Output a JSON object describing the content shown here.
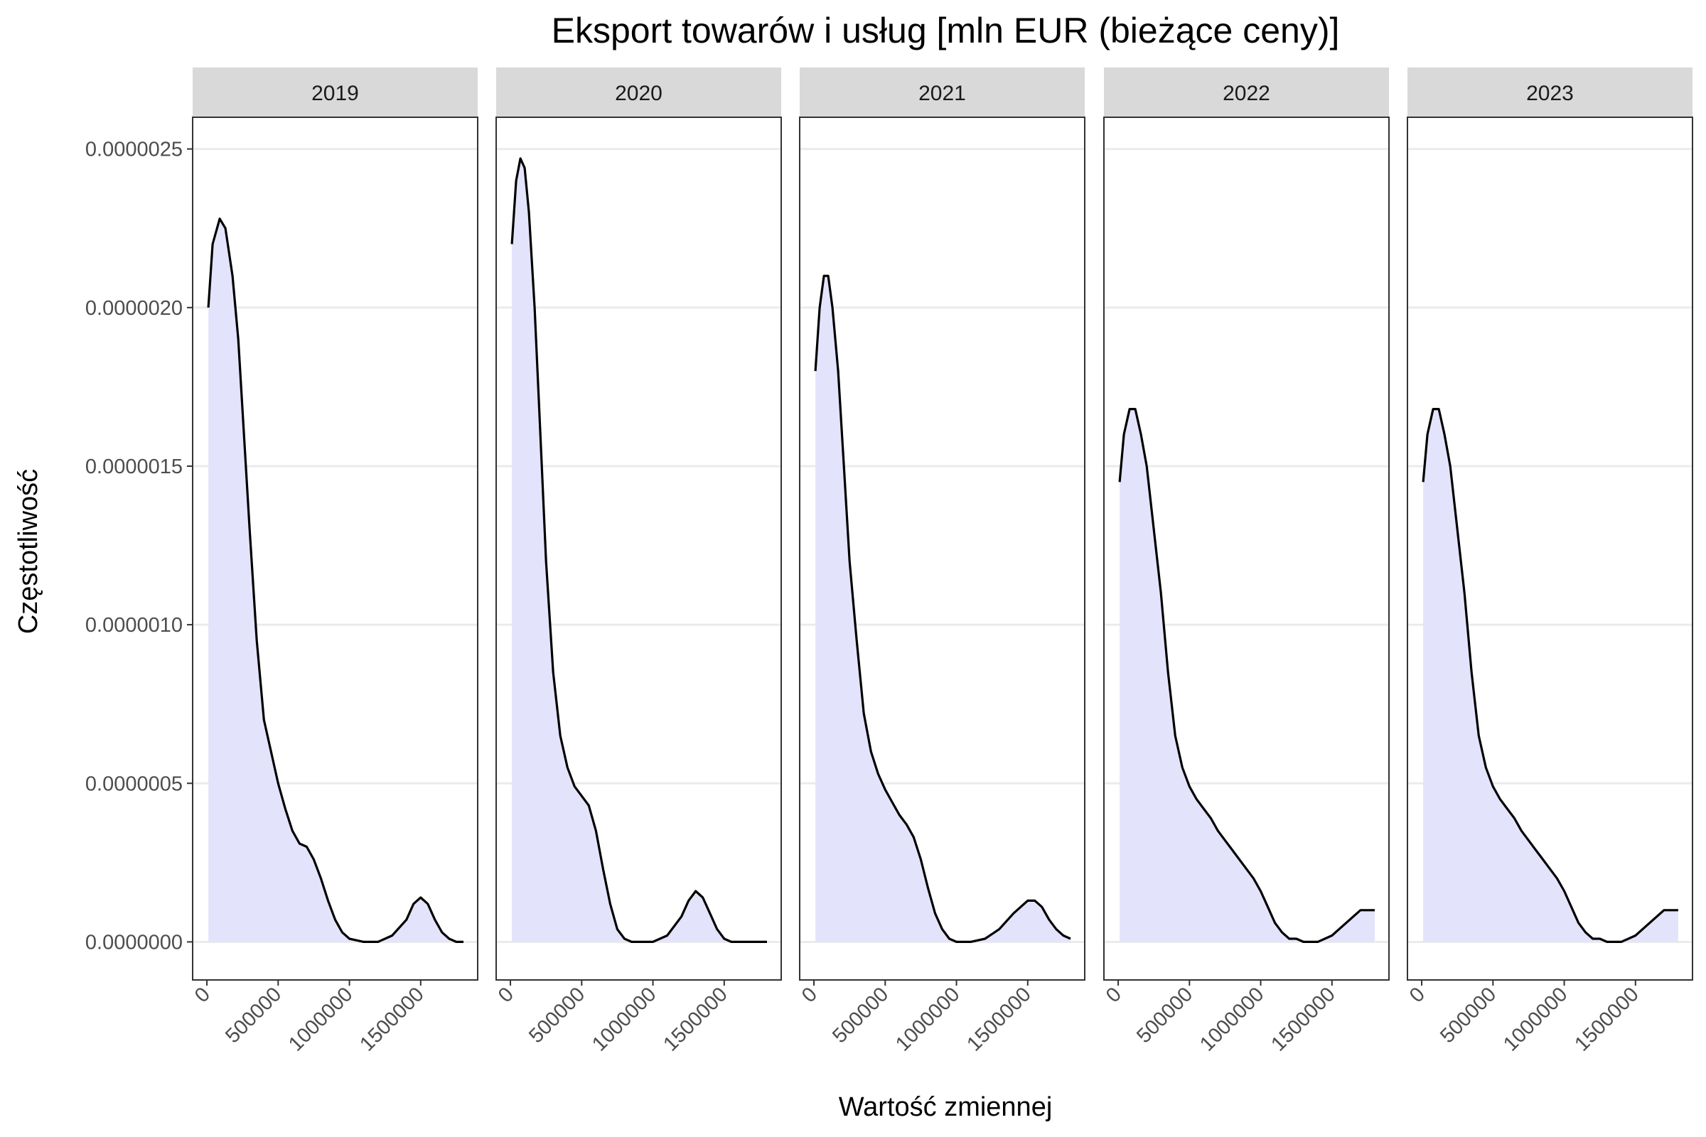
{
  "chart_data": {
    "type": "area",
    "title": "Eksport towarów i usług [mln EUR (bieżące ceny)]",
    "xlabel": "Wartość zmiennej",
    "ylabel": "Częstotliwość",
    "x_tick_values": [
      0,
      500000,
      1000000,
      1500000
    ],
    "x_tick_labels": [
      "0",
      "500000",
      "1000000",
      "1500000"
    ],
    "y_tick_values": [
      0,
      5e-07,
      1e-06,
      1.5e-06,
      2e-06,
      2.5e-06
    ],
    "y_tick_labels": [
      "0.0000000",
      "0.0000005",
      "0.0000010",
      "0.0000015",
      "0.0000020",
      "0.0000025"
    ],
    "xlim": [
      -100000,
      1900000
    ],
    "ylim": [
      -1.2e-07,
      2.6e-06
    ],
    "grid": true,
    "fill_color": "#e3e3fc",
    "line_color": "#000000",
    "strip_color": "#d9d9d9",
    "facets": [
      {
        "label": "2019",
        "x": [
          10000,
          40000,
          90000,
          130000,
          180000,
          220000,
          260000,
          300000,
          350000,
          400000,
          450000,
          500000,
          550000,
          600000,
          650000,
          700000,
          750000,
          800000,
          850000,
          900000,
          950000,
          1000000,
          1100000,
          1200000,
          1300000,
          1400000,
          1450000,
          1500000,
          1550000,
          1600000,
          1650000,
          1700000,
          1750000,
          1800000
        ],
        "y": [
          2e-06,
          2.2e-06,
          2.28e-06,
          2.25e-06,
          2.1e-06,
          1.9e-06,
          1.6e-06,
          1.3e-06,
          9.5e-07,
          7e-07,
          6e-07,
          5e-07,
          4.2e-07,
          3.5e-07,
          3.1e-07,
          3e-07,
          2.6e-07,
          2e-07,
          1.3e-07,
          7e-08,
          3e-08,
          1e-08,
          0,
          0,
          2e-08,
          7e-08,
          1.2e-07,
          1.4e-07,
          1.2e-07,
          7e-08,
          3e-08,
          1e-08,
          0,
          0
        ]
      },
      {
        "label": "2020",
        "x": [
          10000,
          40000,
          70000,
          100000,
          130000,
          170000,
          210000,
          250000,
          300000,
          350000,
          400000,
          450000,
          500000,
          550000,
          600000,
          650000,
          700000,
          750000,
          800000,
          850000,
          900000,
          1000000,
          1100000,
          1200000,
          1250000,
          1300000,
          1350000,
          1400000,
          1450000,
          1500000,
          1550000,
          1600000,
          1700000,
          1800000
        ],
        "y": [
          2.2e-06,
          2.4e-06,
          2.47e-06,
          2.44e-06,
          2.3e-06,
          2e-06,
          1.6e-06,
          1.2e-06,
          8.5e-07,
          6.5e-07,
          5.5e-07,
          4.9e-07,
          4.6e-07,
          4.3e-07,
          3.5e-07,
          2.3e-07,
          1.2e-07,
          4e-08,
          1e-08,
          0,
          0,
          0,
          2e-08,
          8e-08,
          1.3e-07,
          1.6e-07,
          1.4e-07,
          9e-08,
          4e-08,
          1e-08,
          0,
          0,
          0,
          0
        ]
      },
      {
        "label": "2021",
        "x": [
          10000,
          40000,
          70000,
          100000,
          130000,
          170000,
          210000,
          250000,
          300000,
          350000,
          400000,
          450000,
          500000,
          550000,
          600000,
          650000,
          700000,
          750000,
          800000,
          850000,
          900000,
          950000,
          1000000,
          1100000,
          1200000,
          1300000,
          1400000,
          1500000,
          1550000,
          1600000,
          1650000,
          1700000,
          1750000,
          1800000
        ],
        "y": [
          1.8e-06,
          2e-06,
          2.1e-06,
          2.1e-06,
          2e-06,
          1.8e-06,
          1.5e-06,
          1.2e-06,
          9.5e-07,
          7.2e-07,
          6e-07,
          5.3e-07,
          4.8e-07,
          4.4e-07,
          4e-07,
          3.7e-07,
          3.3e-07,
          2.6e-07,
          1.7e-07,
          9e-08,
          4e-08,
          1e-08,
          0,
          0,
          1e-08,
          4e-08,
          9e-08,
          1.3e-07,
          1.3e-07,
          1.1e-07,
          7e-08,
          4e-08,
          2e-08,
          1e-08
        ]
      },
      {
        "label": "2022",
        "x": [
          10000,
          40000,
          80000,
          120000,
          160000,
          200000,
          250000,
          300000,
          350000,
          400000,
          450000,
          500000,
          550000,
          600000,
          650000,
          700000,
          750000,
          800000,
          850000,
          900000,
          950000,
          1000000,
          1050000,
          1100000,
          1150000,
          1200000,
          1250000,
          1300000,
          1400000,
          1500000,
          1550000,
          1600000,
          1650000,
          1700000,
          1750000,
          1800000
        ],
        "y": [
          1.45e-06,
          1.6e-06,
          1.68e-06,
          1.68e-06,
          1.6e-06,
          1.5e-06,
          1.3e-06,
          1.1e-06,
          8.5e-07,
          6.5e-07,
          5.5e-07,
          4.9e-07,
          4.5e-07,
          4.2e-07,
          3.9e-07,
          3.5e-07,
          3.2e-07,
          2.9e-07,
          2.6e-07,
          2.3e-07,
          2e-07,
          1.6e-07,
          1.1e-07,
          6e-08,
          3e-08,
          1e-08,
          1e-08,
          0,
          0,
          2e-08,
          4e-08,
          6e-08,
          8e-08,
          1e-07,
          1e-07,
          1e-07
        ]
      },
      {
        "label": "2023",
        "x": [
          10000,
          40000,
          80000,
          120000,
          160000,
          200000,
          250000,
          300000,
          350000,
          400000,
          450000,
          500000,
          550000,
          600000,
          650000,
          700000,
          750000,
          800000,
          850000,
          900000,
          950000,
          1000000,
          1050000,
          1100000,
          1150000,
          1200000,
          1250000,
          1300000,
          1400000,
          1500000,
          1550000,
          1600000,
          1650000,
          1700000,
          1750000,
          1800000
        ],
        "y": [
          1.45e-06,
          1.6e-06,
          1.68e-06,
          1.68e-06,
          1.6e-06,
          1.5e-06,
          1.3e-06,
          1.1e-06,
          8.5e-07,
          6.5e-07,
          5.5e-07,
          4.9e-07,
          4.5e-07,
          4.2e-07,
          3.9e-07,
          3.5e-07,
          3.2e-07,
          2.9e-07,
          2.6e-07,
          2.3e-07,
          2e-07,
          1.6e-07,
          1.1e-07,
          6e-08,
          3e-08,
          1e-08,
          1e-08,
          0,
          0,
          2e-08,
          4e-08,
          6e-08,
          8e-08,
          1e-07,
          1e-07,
          1e-07
        ]
      }
    ]
  }
}
